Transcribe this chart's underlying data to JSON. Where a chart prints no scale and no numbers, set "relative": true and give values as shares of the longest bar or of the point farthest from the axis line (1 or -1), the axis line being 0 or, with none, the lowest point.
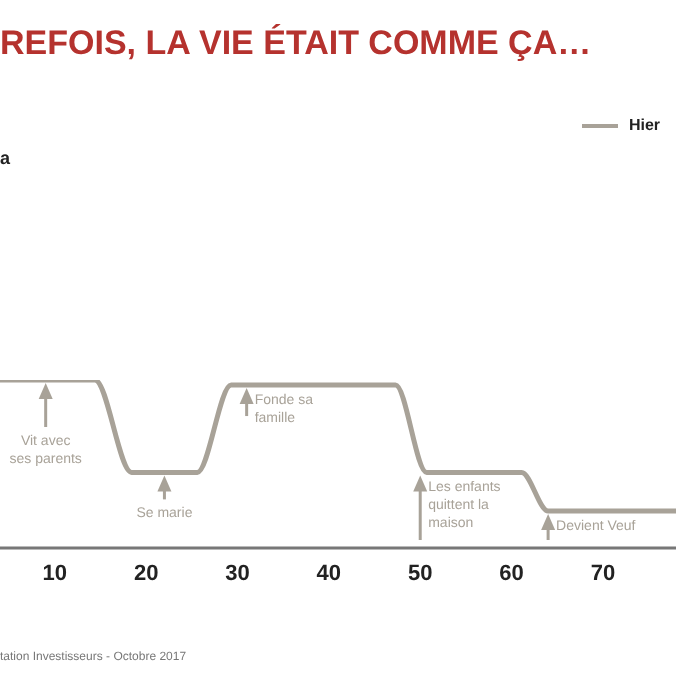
{
  "chart_data": {
    "type": "line",
    "title": "REFOIS, LA VIE ÉTAIT COMME ÇA…",
    "relative": true,
    "xlim": [
      4,
      78
    ],
    "xticks": [
      10,
      20,
      30,
      40,
      50,
      60,
      70
    ],
    "series": [
      {
        "name": "Hier",
        "color": "#a8a298",
        "x": [
          4,
          14.4,
          18.4,
          25.6,
          29.3,
          47.3,
          50.7,
          61.1,
          64,
          78
        ],
        "values": [
          1,
          1,
          0.45,
          0.45,
          0.97,
          0.97,
          0.45,
          0.45,
          0.22,
          0.22
        ]
      }
    ],
    "legend": "top right",
    "marker": "none",
    "line_style": "solid",
    "annotations": [
      "a",
      {
        "text": "Vit avec\nses parents",
        "x": 9,
        "y": 1
      },
      {
        "text": "Se marie",
        "x": 22,
        "y": 0.45
      },
      {
        "text": "Fonde sa\nfamille",
        "x": 31,
        "y": 0.97
      },
      {
        "text": "Les enfants\nquittent la\nmaison",
        "x": 50,
        "y": 0.45
      },
      {
        "text": "Devient Veuf",
        "x": 64,
        "y": 0.22
      },
      "tation Investisseurs - Octobre 2017"
    ]
  }
}
